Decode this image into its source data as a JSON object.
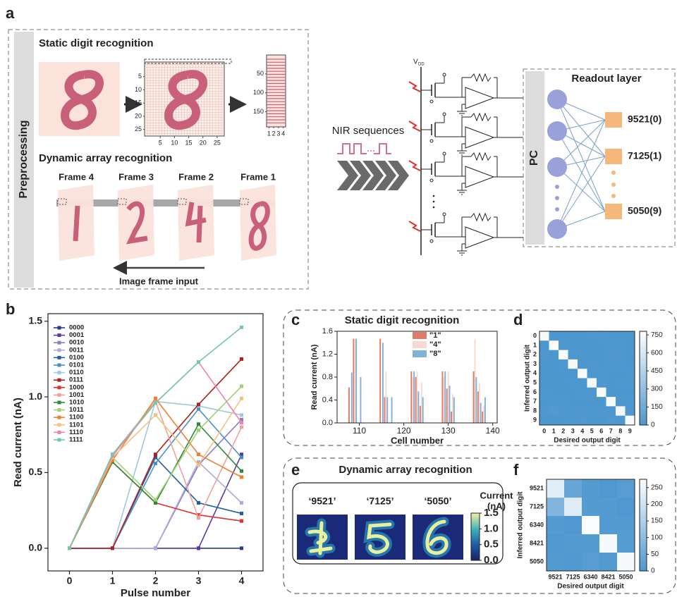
{
  "panel_labels": [
    "a",
    "b",
    "c",
    "d",
    "e",
    "f"
  ],
  "panel_a": {
    "side_label": "Preprocessing",
    "static_title": "Static digit recognition",
    "grid_ticks": [
      5,
      10,
      15,
      20,
      25
    ],
    "strip_yticks": [
      50,
      100,
      150
    ],
    "strip_xticks": [
      1,
      2,
      3,
      4
    ],
    "dynamic_title": "Dynamic array recognition",
    "frames": [
      "Frame 4",
      "Frame 3",
      "Frame 2",
      "Frame 1"
    ],
    "frame_input": "Image frame input",
    "nir": "NIR sequences",
    "vdd": "V",
    "vdd_sub": "DD",
    "pc": "PC",
    "readout_title": "Readout layer",
    "outputs": [
      "9521(0)",
      "7125(1)",
      "5050(9)"
    ]
  },
  "panel_e": {
    "title": "Dynamic array recognition",
    "labels": [
      "‘9521’",
      "‘7125’",
      "‘5050’"
    ],
    "colorbar_label": [
      "Current",
      "(nA)"
    ],
    "colorbar_lim": [
      0,
      1.5
    ],
    "colorbar_ticks": [
      {
        "value": 0,
        "label": "0.0"
      },
      0.5,
      {
        "value": 1,
        "label": "1.0"
      },
      1.5
    ]
  },
  "chart_data": [
    {
      "type": "line",
      "xlabel": "Pulse number",
      "ylabel": "Read current (nA)",
      "x": [
        0,
        1,
        2,
        3,
        4
      ],
      "xlim": [
        -0.5,
        4.5
      ],
      "xticks": [
        0,
        1,
        2,
        3,
        4
      ],
      "ylim": [
        -0.15,
        1.55
      ],
      "yticks": [
        {
          "value": 0,
          "label": "0.0"
        },
        0.5,
        {
          "value": 1,
          "label": "1.0"
        },
        1.5
      ],
      "legend": "upper left",
      "series": [
        {
          "name": "0000",
          "color": "#2b3a8a",
          "values": [
            0,
            0,
            0,
            0,
            0
          ]
        },
        {
          "name": "0001",
          "color": "#5b3aa0",
          "values": [
            0,
            0,
            0,
            0,
            0.62
          ]
        },
        {
          "name": "0010",
          "color": "#8a7fc0",
          "values": [
            0,
            0,
            0,
            0.55,
            0.85
          ]
        },
        {
          "name": "0011",
          "color": "#b3a8d8",
          "values": [
            0,
            0,
            0,
            0.57,
            0.3
          ]
        },
        {
          "name": "0100",
          "color": "#1f5fa0",
          "values": [
            0,
            0,
            0.6,
            0.3,
            0.23
          ]
        },
        {
          "name": "0101",
          "color": "#4a90c8",
          "values": [
            0,
            0,
            0.56,
            0.92,
            0.6
          ]
        },
        {
          "name": "0110",
          "color": "#9cc8e0",
          "values": [
            0,
            0,
            0.97,
            0.94,
            0.88
          ]
        },
        {
          "name": "0111",
          "color": "#b02020",
          "values": [
            0,
            0,
            0.62,
            0.95,
            1.25
          ]
        },
        {
          "name": "1000",
          "color": "#e03030",
          "values": [
            0,
            0.57,
            0.3,
            0.22,
            0.18
          ]
        },
        {
          "name": "1001",
          "color": "#f0a0a0",
          "values": [
            0,
            0.62,
            0.97,
            0.2,
            0.8
          ]
        },
        {
          "name": "1010",
          "color": "#2a8a3a",
          "values": [
            0,
            0.57,
            0.3,
            0.82,
            0.51
          ]
        },
        {
          "name": "1011",
          "color": "#a0d070",
          "values": [
            0,
            0.6,
            0.32,
            0.78,
            1.07
          ]
        },
        {
          "name": "1100",
          "color": "#f08030",
          "values": [
            0,
            0.58,
            0.99,
            0.62,
            0.47
          ]
        },
        {
          "name": "1101",
          "color": "#f5c080",
          "values": [
            0,
            0.6,
            0.88,
            0.55,
            0.99
          ]
        },
        {
          "name": "1110",
          "color": "#f080b0",
          "values": [
            0,
            0.61,
            0.96,
            1.23,
            0.83
          ]
        },
        {
          "name": "1111",
          "color": "#70c8b0",
          "values": [
            0,
            0.62,
            0.96,
            1.23,
            1.46
          ]
        }
      ]
    },
    {
      "type": "bar",
      "title": "Static digit recognition",
      "xlabel": "Cell number",
      "ylabel": "Read current (nA)",
      "x": [
        108,
        109,
        110,
        115,
        116,
        117,
        122,
        123,
        124,
        129,
        130,
        131,
        136,
        137,
        138
      ],
      "xlim": [
        105,
        141
      ],
      "xticks": [
        110,
        120,
        130,
        140
      ],
      "ylim": [
        0,
        1.6
      ],
      "yticks": [
        {
          "value": 0,
          "label": "0.0"
        },
        0.4,
        0.8,
        1.2,
        1.6
      ],
      "series": [
        {
          "name": "\"1\"",
          "color": "#e07a68",
          "values": [
            0.62,
            1.47,
            0,
            1.47,
            0.45,
            0,
            0.9,
            0.8,
            0.3,
            0.9,
            0.6,
            0.2,
            0.9,
            0.55,
            0.2
          ]
        },
        {
          "name": "\"4\"",
          "color": "#f8d8d0",
          "values": [
            0,
            1.47,
            0,
            0,
            0.9,
            0,
            0.8,
            0.9,
            0.7,
            0.8,
            0.9,
            0.5,
            1.47,
            0.7,
            0.3
          ]
        },
        {
          "name": "\"8\"",
          "color": "#7fb2d8",
          "values": [
            0.88,
            1.47,
            0.8,
            1.4,
            0.45,
            0.45,
            0.9,
            0.55,
            0.45,
            0.9,
            0.65,
            0.45,
            0.8,
            0.35,
            0.45
          ]
        }
      ]
    },
    {
      "type": "heatmap",
      "xlabel": "Desired output digit",
      "ylabel": "Inferred output digit",
      "xcategories": [
        0,
        1,
        2,
        3,
        4,
        5,
        6,
        7,
        8,
        9
      ],
      "ycategories": [
        0,
        1,
        2,
        3,
        4,
        5,
        6,
        7,
        8,
        9
      ],
      "zlim": [
        0,
        780
      ],
      "zticks": [
        0,
        150,
        300,
        450,
        600,
        750
      ],
      "z": [
        [
          745,
          2,
          0,
          1,
          0,
          3,
          4,
          1,
          2,
          2
        ],
        [
          0,
          752,
          3,
          1,
          2,
          0,
          1,
          3,
          4,
          1
        ],
        [
          3,
          2,
          748,
          4,
          1,
          0,
          2,
          5,
          3,
          0
        ],
        [
          1,
          0,
          4,
          742,
          0,
          6,
          0,
          3,
          5,
          2
        ],
        [
          0,
          2,
          1,
          0,
          750,
          0,
          3,
          2,
          1,
          6
        ],
        [
          2,
          0,
          0,
          7,
          1,
          738,
          4,
          0,
          5,
          3
        ],
        [
          4,
          1,
          2,
          0,
          3,
          5,
          746,
          0,
          2,
          0
        ],
        [
          0,
          3,
          6,
          2,
          2,
          0,
          0,
          740,
          2,
          8
        ],
        [
          3,
          18,
          5,
          6,
          4,
          7,
          3,
          4,
          730,
          6
        ],
        [
          2,
          1,
          0,
          3,
          9,
          2,
          0,
          10,
          4,
          742
        ]
      ]
    },
    {
      "type": "heatmap",
      "xlabel": "Desired output digit",
      "ylabel": "Inferred output digit",
      "xcategories": [
        "9521",
        "7125",
        "6340",
        "8421",
        "5050"
      ],
      "ycategories": [
        "9521",
        "7125",
        "6340",
        "8421",
        "5050"
      ],
      "zlim": [
        0,
        275
      ],
      "zticks": [
        0,
        50,
        100,
        150,
        200,
        250
      ],
      "z": [
        [
          230,
          40,
          10,
          5,
          15
        ],
        [
          80,
          225,
          10,
          10,
          5
        ],
        [
          10,
          5,
          265,
          10,
          10
        ],
        [
          5,
          10,
          10,
          262,
          13
        ],
        [
          10,
          5,
          15,
          8,
          262
        ]
      ]
    }
  ]
}
